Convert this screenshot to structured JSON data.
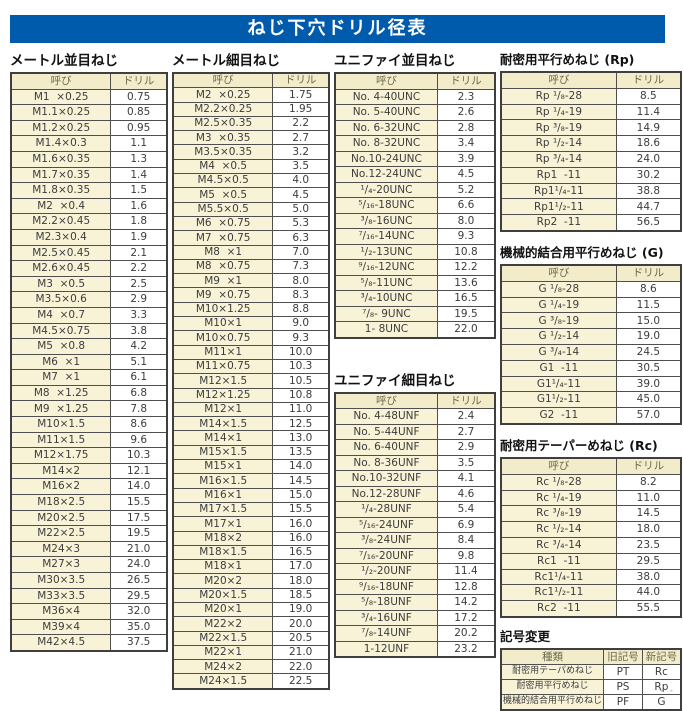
{
  "title": "ねじ下穴ドリル径表",
  "col_headers": {
    "name": "呼び",
    "drill": "ドリル"
  },
  "tables": {
    "metric_coarse": {
      "heading": "メートル並目ねじ",
      "rows": [
        [
          "M1  ×0.25",
          "0.75"
        ],
        [
          "M1.1×0.25",
          "0.85"
        ],
        [
          "M1.2×0.25",
          "0.95"
        ],
        [
          "M1.4×0.3",
          "1.1"
        ],
        [
          "M1.6×0.35",
          "1.3"
        ],
        [
          "M1.7×0.35",
          "1.4"
        ],
        [
          "M1.8×0.35",
          "1.5"
        ],
        [
          "M2  ×0.4",
          "1.6"
        ],
        [
          "M2.2×0.45",
          "1.8"
        ],
        [
          "M2.3×0.4",
          "1.9"
        ],
        [
          "M2.5×0.45",
          "2.1"
        ],
        [
          "M2.6×0.45",
          "2.2"
        ],
        [
          "M3  ×0.5",
          "2.5"
        ],
        [
          "M3.5×0.6",
          "2.9"
        ],
        [
          "M4  ×0.7",
          "3.3"
        ],
        [
          "M4.5×0.75",
          "3.8"
        ],
        [
          "M5  ×0.8",
          "4.2"
        ],
        [
          "M6  ×1",
          "5.1"
        ],
        [
          "M7  ×1",
          "6.1"
        ],
        [
          "M8  ×1.25",
          "6.8"
        ],
        [
          "M9  ×1.25",
          "7.8"
        ],
        [
          "M10×1.5",
          "8.6"
        ],
        [
          "M11×1.5",
          "9.6"
        ],
        [
          "M12×1.75",
          "10.3"
        ],
        [
          "M14×2",
          "12.1"
        ],
        [
          "M16×2",
          "14.0"
        ],
        [
          "M18×2.5",
          "15.5"
        ],
        [
          "M20×2.5",
          "17.5"
        ],
        [
          "M22×2.5",
          "19.5"
        ],
        [
          "M24×3",
          "21.0"
        ],
        [
          "M27×3",
          "24.0"
        ],
        [
          "M30×3.5",
          "26.5"
        ],
        [
          "M33×3.5",
          "29.5"
        ],
        [
          "M36×4",
          "32.0"
        ],
        [
          "M39×4",
          "35.0"
        ],
        [
          "M42×4.5",
          "37.5"
        ]
      ]
    },
    "metric_fine": {
      "heading": "メートル細目ねじ",
      "rows": [
        [
          "M2  ×0.25",
          "1.75"
        ],
        [
          "M2.2×0.25",
          "1.95"
        ],
        [
          "M2.5×0.35",
          "2.2"
        ],
        [
          "M3  ×0.35",
          "2.7"
        ],
        [
          "M3.5×0.35",
          "3.2"
        ],
        [
          "M4  ×0.5",
          "3.5"
        ],
        [
          "M4.5×0.5",
          "4.0"
        ],
        [
          "M5  ×0.5",
          "4.5"
        ],
        [
          "M5.5×0.5",
          "5.0"
        ],
        [
          "M6  ×0.75",
          "5.3"
        ],
        [
          "M7  ×0.75",
          "6.3"
        ],
        [
          "M8  ×1",
          "7.0"
        ],
        [
          "M8  ×0.75",
          "7.3"
        ],
        [
          "M9  ×1",
          "8.0"
        ],
        [
          "M9  ×0.75",
          "8.3"
        ],
        [
          "M10×1.25",
          "8.8"
        ],
        [
          "M10×1",
          "9.0"
        ],
        [
          "M10×0.75",
          "9.3"
        ],
        [
          "M11×1",
          "10.0"
        ],
        [
          "M11×0.75",
          "10.3"
        ],
        [
          "M12×1.5",
          "10.5"
        ],
        [
          "M12×1.25",
          "10.8"
        ],
        [
          "M12×1",
          "11.0"
        ],
        [
          "M14×1.5",
          "12.5"
        ],
        [
          "M14×1",
          "13.0"
        ],
        [
          "M15×1.5",
          "13.5"
        ],
        [
          "M15×1",
          "14.0"
        ],
        [
          "M16×1.5",
          "14.5"
        ],
        [
          "M16×1",
          "15.0"
        ],
        [
          "M17×1.5",
          "15.5"
        ],
        [
          "M17×1",
          "16.0"
        ],
        [
          "M18×2",
          "16.0"
        ],
        [
          "M18×1.5",
          "16.5"
        ],
        [
          "M18×1",
          "17.0"
        ],
        [
          "M20×2",
          "18.0"
        ],
        [
          "M20×1.5",
          "18.5"
        ],
        [
          "M20×1",
          "19.0"
        ],
        [
          "M22×2",
          "20.0"
        ],
        [
          "M22×1.5",
          "20.5"
        ],
        [
          "M22×1",
          "21.0"
        ],
        [
          "M24×2",
          "22.0"
        ],
        [
          "M24×1.5",
          "22.5"
        ]
      ]
    },
    "unified_coarse": {
      "heading": "ユニファイ並目ねじ",
      "rows": [
        [
          "No. 4-40UNC",
          "2.3"
        ],
        [
          "No. 5-40UNC",
          "2.6"
        ],
        [
          "No. 6-32UNC",
          "2.8"
        ],
        [
          "No. 8-32UNC",
          "3.4"
        ],
        [
          "No.10-24UNC",
          "3.9"
        ],
        [
          "No.12-24UNC",
          "4.5"
        ],
        [
          "¹/₄-20UNC",
          "5.2"
        ],
        [
          "⁵/₁₆-18UNC",
          "6.6"
        ],
        [
          "³/₈-16UNC",
          "8.0"
        ],
        [
          "⁷/₁₆-14UNC",
          "9.3"
        ],
        [
          "¹/₂-13UNC",
          "10.8"
        ],
        [
          "⁹/₁₆-12UNC",
          "12.2"
        ],
        [
          "⁵/₈-11UNC",
          "13.6"
        ],
        [
          "³/₄-10UNC",
          "16.5"
        ],
        [
          "⁷/₈- 9UNC",
          "19.5"
        ],
        [
          "1- 8UNC",
          "22.0"
        ]
      ]
    },
    "unified_fine": {
      "heading": "ユニファイ細目ねじ",
      "rows": [
        [
          "No. 4-48UNF",
          "2.4"
        ],
        [
          "No. 5-44UNF",
          "2.7"
        ],
        [
          "No. 6-40UNF",
          "2.9"
        ],
        [
          "No. 8-36UNF",
          "3.5"
        ],
        [
          "No.10-32UNF",
          "4.1"
        ],
        [
          "No.12-28UNF",
          "4.6"
        ],
        [
          "¹/₄-28UNF",
          "5.4"
        ],
        [
          "⁵/₁₆-24UNF",
          "6.9"
        ],
        [
          "³/₈-24UNF",
          "8.4"
        ],
        [
          "⁷/₁₆-20UNF",
          "9.8"
        ],
        [
          "¹/₂-20UNF",
          "11.4"
        ],
        [
          "⁹/₁₆-18UNF",
          "12.8"
        ],
        [
          "⁵/₈-18UNF",
          "14.2"
        ],
        [
          "³/₄-16UNF",
          "17.2"
        ],
        [
          "⁷/₈-14UNF",
          "20.2"
        ],
        [
          "1-12UNF",
          "23.2"
        ]
      ]
    },
    "rp": {
      "heading": "耐密用平行めねじ (Rp)",
      "rows": [
        [
          "Rp ¹/₈-28",
          "8.5"
        ],
        [
          "Rp ¹/₄-19",
          "11.4"
        ],
        [
          "Rp ³/₈-19",
          "14.9"
        ],
        [
          "Rp ¹/₂-14",
          "18.6"
        ],
        [
          "Rp ³/₄-14",
          "24.0"
        ],
        [
          "Rp1  -11",
          "30.2"
        ],
        [
          "Rp1¹/₄-11",
          "38.8"
        ],
        [
          "Rp1¹/₂-11",
          "44.7"
        ],
        [
          "Rp2  -11",
          "56.5"
        ]
      ]
    },
    "g": {
      "heading": "機械的結合用平行めねじ (G)",
      "rows": [
        [
          "G ¹/₈-28",
          "8.6"
        ],
        [
          "G ¹/₄-19",
          "11.5"
        ],
        [
          "G ³/₈-19",
          "15.0"
        ],
        [
          "G ¹/₂-14",
          "19.0"
        ],
        [
          "G ³/₄-14",
          "24.5"
        ],
        [
          "G1  -11",
          "30.5"
        ],
        [
          "G1¹/₄-11",
          "39.0"
        ],
        [
          "G1¹/₂-11",
          "45.0"
        ],
        [
          "G2  -11",
          "57.0"
        ]
      ]
    },
    "rc": {
      "heading": "耐密用テーパーめねじ (Rc)",
      "rows": [
        [
          "Rc ¹/₈-28",
          "8.2"
        ],
        [
          "Rc ¹/₄-19",
          "11.0"
        ],
        [
          "Rc ³/₈-19",
          "14.5"
        ],
        [
          "Rc ¹/₂-14",
          "18.0"
        ],
        [
          "Rc ³/₄-14",
          "23.5"
        ],
        [
          "Rc1  -11",
          "29.5"
        ],
        [
          "Rc1¹/₄-11",
          "38.0"
        ],
        [
          "Rc1¹/₂-11",
          "44.0"
        ],
        [
          "Rc2  -11",
          "55.5"
        ]
      ]
    }
  },
  "symbol_change": {
    "heading": "記号変更",
    "headers": [
      "種類",
      "旧記号",
      "新記号"
    ],
    "rows": [
      [
        "耐密用テーパめねじ",
        "PT",
        "Rc"
      ],
      [
        "耐密用平行めねじ",
        "PS",
        "Rp"
      ],
      [
        "機械的結合用平行めねじ",
        "PF",
        "G"
      ]
    ]
  },
  "footer_mark": "- -",
  "colors": {
    "banner_blue": "#005bac",
    "cell_cream": "#f8f3d7",
    "border": "#4f4f4f"
  }
}
